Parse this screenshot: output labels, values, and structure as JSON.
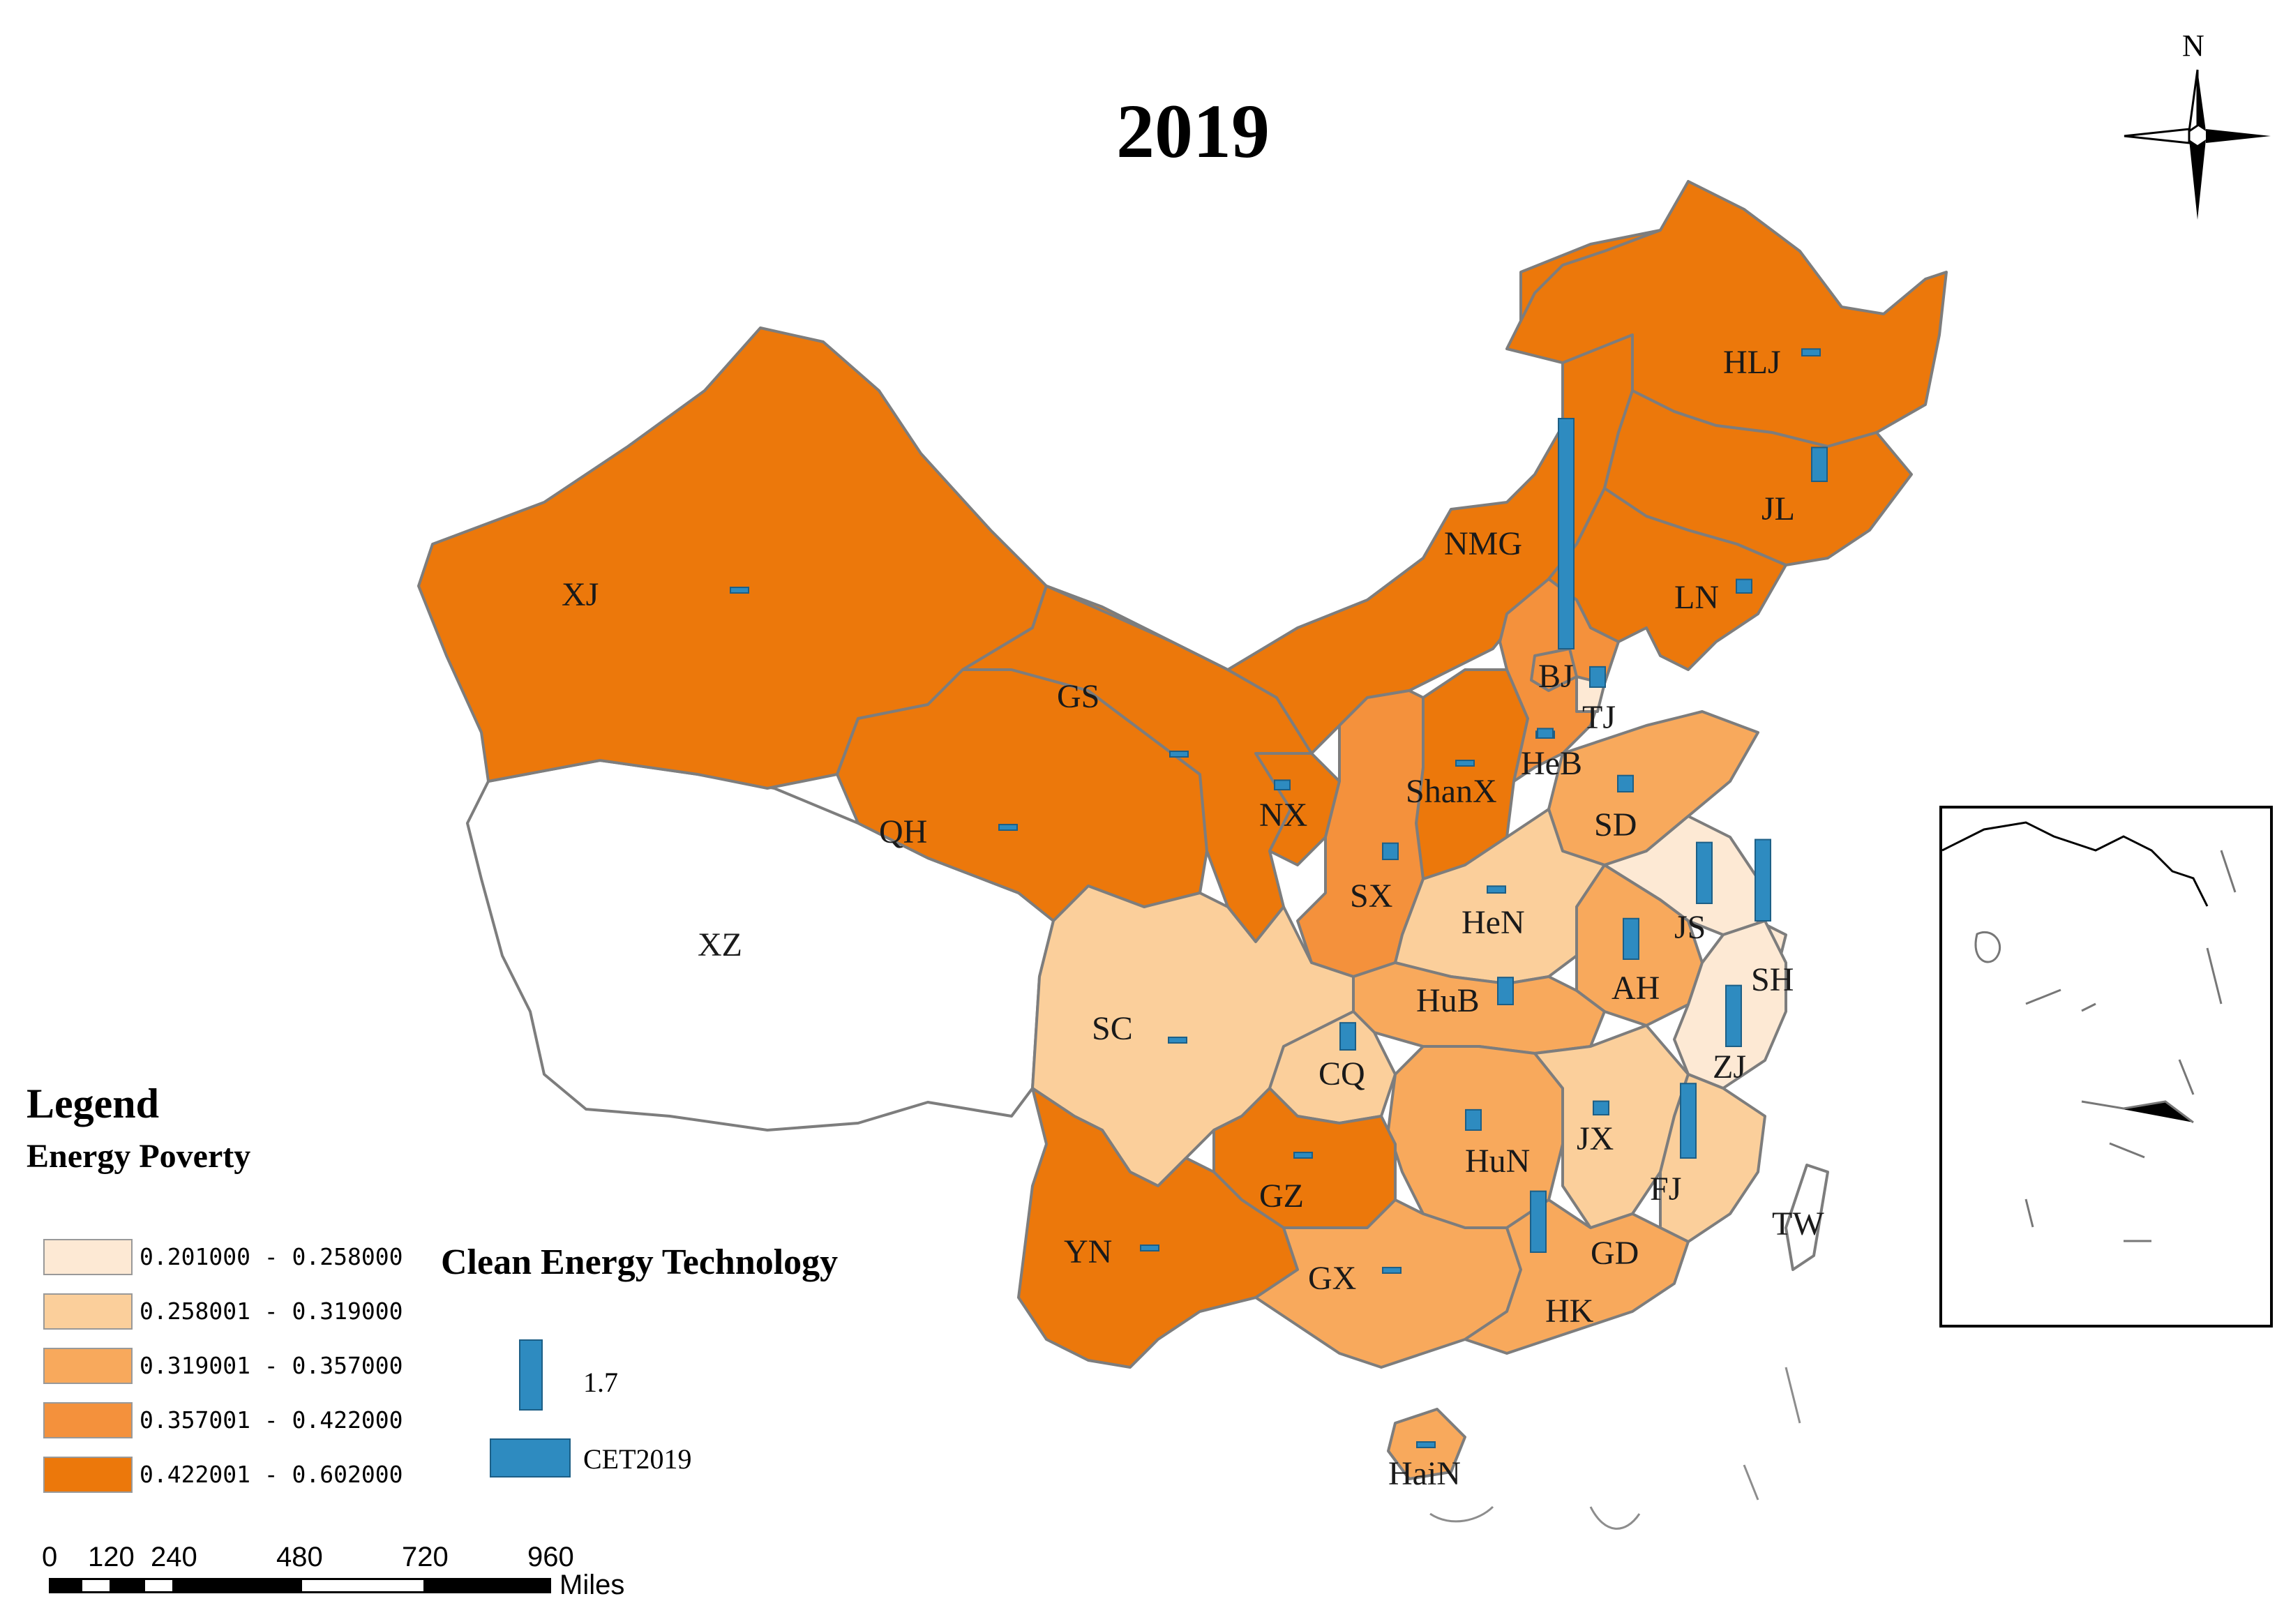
{
  "title": "2019",
  "compass": {
    "north_label": "N"
  },
  "legend": {
    "title": "Legend",
    "subtitle": "Energy Poverty",
    "classes": [
      {
        "range": "0.201000 - 0.258000",
        "color": "#fde9d4"
      },
      {
        "range": "0.258001 - 0.319000",
        "color": "#fbcf9b"
      },
      {
        "range": "0.319001 - 0.357000",
        "color": "#f8a95c"
      },
      {
        "range": "0.357001 - 0.422000",
        "color": "#f4913c"
      },
      {
        "range": "0.422001 - 0.602000",
        "color": "#ec780b"
      }
    ]
  },
  "cet_legend": {
    "title": "Clean Energy Technology",
    "bar_value": "1.7",
    "field_name": "CET2019",
    "bar_color": "#2e8bc0"
  },
  "scale_bar": {
    "ticks": [
      "0",
      "120",
      "240",
      "480",
      "720",
      "960"
    ],
    "unit": "Miles"
  },
  "provinces": [
    {
      "code": "HLJ",
      "class": 4,
      "cet": 0.05
    },
    {
      "code": "JL",
      "class": 4,
      "cet": 0.25
    },
    {
      "code": "LN",
      "class": 4,
      "cet": 0.1
    },
    {
      "code": "NMG",
      "class": 4,
      "cet": 1.7
    },
    {
      "code": "XJ",
      "class": 4,
      "cet": 0.03
    },
    {
      "code": "GS",
      "class": 4,
      "cet": 0.03
    },
    {
      "code": "QH",
      "class": 4,
      "cet": 0.03
    },
    {
      "code": "NX",
      "class": 4,
      "cet": 0.07
    },
    {
      "code": "ShanX",
      "class": 4,
      "cet": 0.03
    },
    {
      "code": "BJ",
      "class": 3,
      "cet": 0.05
    },
    {
      "code": "TJ",
      "class": 0,
      "cet": 0.15
    },
    {
      "code": "HeB",
      "class": 3,
      "cet": 0.07
    },
    {
      "code": "SD",
      "class": 2,
      "cet": 0.12
    },
    {
      "code": "SX",
      "class": 3,
      "cet": 0.12
    },
    {
      "code": "HeN",
      "class": 1,
      "cet": 0.05
    },
    {
      "code": "JS",
      "class": 0,
      "cet": 0.45
    },
    {
      "code": "SH",
      "class": 0,
      "cet": 0.6
    },
    {
      "code": "AH",
      "class": 2,
      "cet": 0.3
    },
    {
      "code": "HuB",
      "class": 2,
      "cet": 0.2
    },
    {
      "code": "ZJ",
      "class": 0,
      "cet": 0.45
    },
    {
      "code": "SC",
      "class": 1,
      "cet": 0.03
    },
    {
      "code": "CQ",
      "class": 1,
      "cet": 0.2
    },
    {
      "code": "XZ",
      "class": -1,
      "cet": 0
    },
    {
      "code": "HuN",
      "class": 2,
      "cet": 0.15
    },
    {
      "code": "JX",
      "class": 1,
      "cet": 0.1
    },
    {
      "code": "FJ",
      "class": 1,
      "cet": 0.55
    },
    {
      "code": "GZ",
      "class": 4,
      "cet": 0.03
    },
    {
      "code": "YN",
      "class": 4,
      "cet": 0.03
    },
    {
      "code": "GX",
      "class": 2,
      "cet": 0.03
    },
    {
      "code": "GD",
      "class": 2,
      "cet": 0.45
    },
    {
      "code": "HK",
      "class": -1,
      "cet": 0
    },
    {
      "code": "TW",
      "class": -1,
      "cet": 0
    },
    {
      "code": "HaiN",
      "class": 2,
      "cet": 0.03
    }
  ]
}
